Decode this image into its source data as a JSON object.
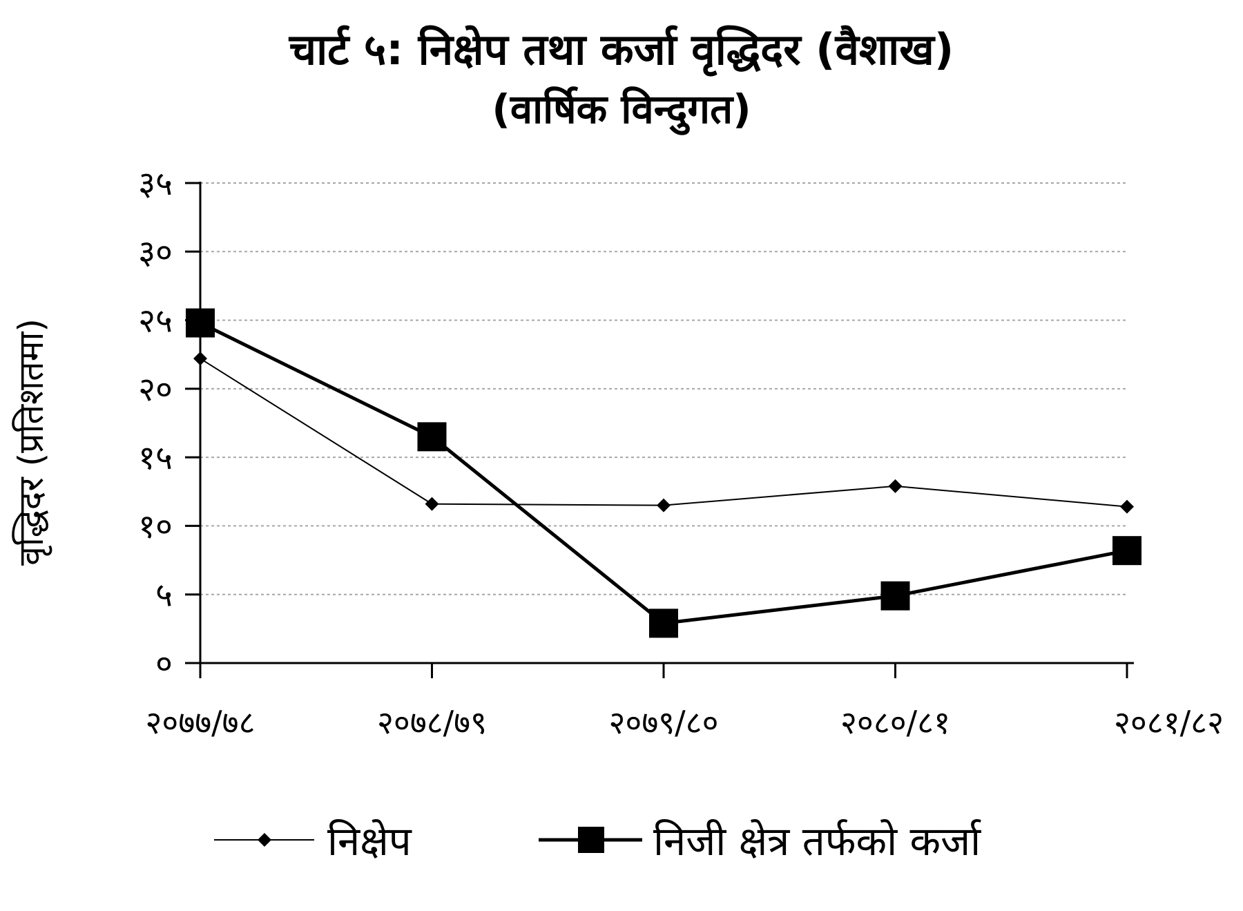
{
  "chart_data": {
    "type": "line",
    "title": "चार्ट ५: निक्षेप तथा कर्जा वृद्धिदर (वैशाख)",
    "subtitle": "(वार्षिक विन्दुगत)",
    "ylabel": "वृद्धिदर (प्रतिशतमा)",
    "xlabel": "",
    "categories": [
      "२०७७/७८",
      "२०७८/७९",
      "२०७९/८०",
      "२०८०/८१",
      "२०८१/८२"
    ],
    "ylim": [
      0,
      35
    ],
    "yticks": [
      0,
      5,
      10,
      15,
      20,
      25,
      30,
      35
    ],
    "ytick_labels": [
      "०",
      "५",
      "१०",
      "१५",
      "२०",
      "२५",
      "३०",
      "३५"
    ],
    "grid": true,
    "legend_position": "bottom",
    "series": [
      {
        "name": "निक्षेप",
        "values": [
          22.2,
          11.6,
          11.5,
          12.9,
          11.4
        ],
        "marker": "diamond",
        "color": "#000000"
      },
      {
        "name": "निजी क्षेत्र तर्फको कर्जा",
        "values": [
          24.8,
          16.5,
          2.9,
          4.9,
          8.2
        ],
        "marker": "square",
        "color": "#000000"
      }
    ]
  }
}
